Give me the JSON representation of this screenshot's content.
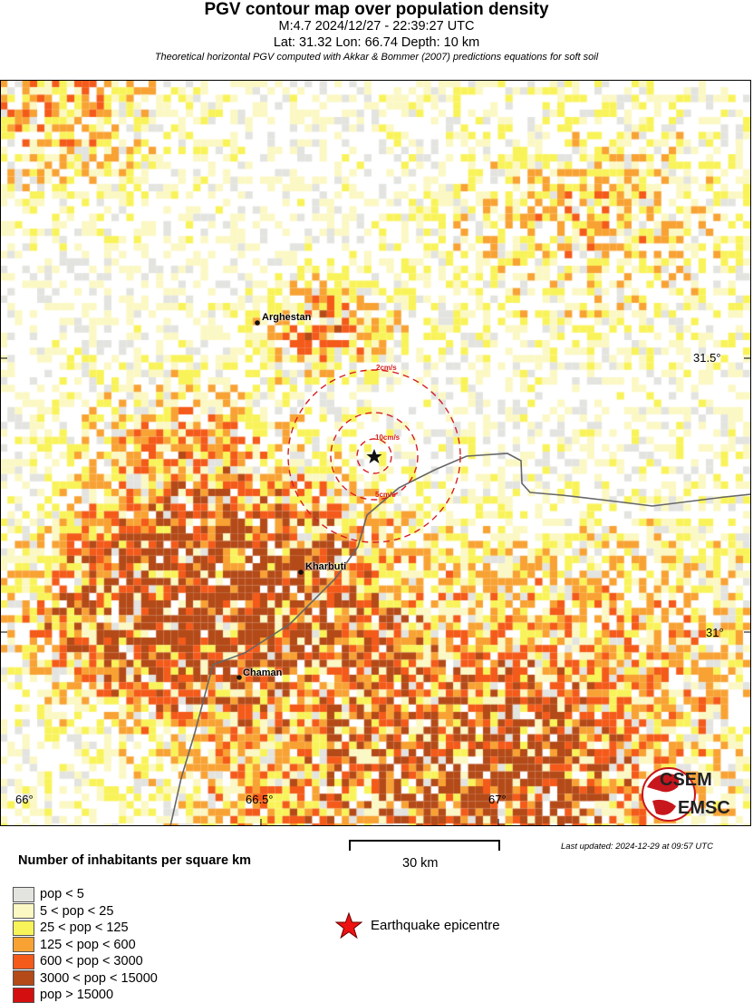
{
  "header": {
    "title": "PGV contour map over population density",
    "event": "M:4.7 2024/12/27 - 22:39:27 UTC",
    "location": "Lat: 31.32 Lon: 66.74 Depth: 10 km",
    "note": "Theoretical horizontal PGV computed with Akkar & Bommer (2007) predictions equations for soft soil"
  },
  "map": {
    "cities": [
      {
        "name": "Arghestan"
      },
      {
        "name": "Kharbuti"
      },
      {
        "name": "Chaman"
      }
    ],
    "contours": [
      {
        "label": "2cm/s"
      },
      {
        "label": "5cm/s"
      },
      {
        "label": "10cm/s"
      }
    ],
    "lat_ticks": [
      "31.5°",
      "31°"
    ],
    "lon_ticks": [
      "66°",
      "66.5°",
      "67°"
    ],
    "epicentre_icon": "star-icon",
    "logo": {
      "top": "CSEM",
      "bottom": "EMSC"
    }
  },
  "scale_bar": {
    "label": "30 km"
  },
  "last_updated": "Last updated: 2024-12-29 at 09:57 UTC",
  "legend": {
    "title": "Number of inhabitants per square km",
    "items": [
      {
        "label": "pop < 5",
        "color": "#e3e3e0"
      },
      {
        "label": "5 < pop < 25",
        "color": "#fbf8c4"
      },
      {
        "label": "25 < pop < 125",
        "color": "#f9f35a"
      },
      {
        "label": "125 < pop < 600",
        "color": "#f8a234"
      },
      {
        "label": "600 < pop < 3000",
        "color": "#f45a1a"
      },
      {
        "label": "3000 < pop < 15000",
        "color": "#b44a18"
      },
      {
        "label": "pop > 15000",
        "color": "#d40f0f"
      }
    ],
    "epicentre_label": "Earthquake epicentre",
    "epicentre_color": "#ee1111"
  }
}
